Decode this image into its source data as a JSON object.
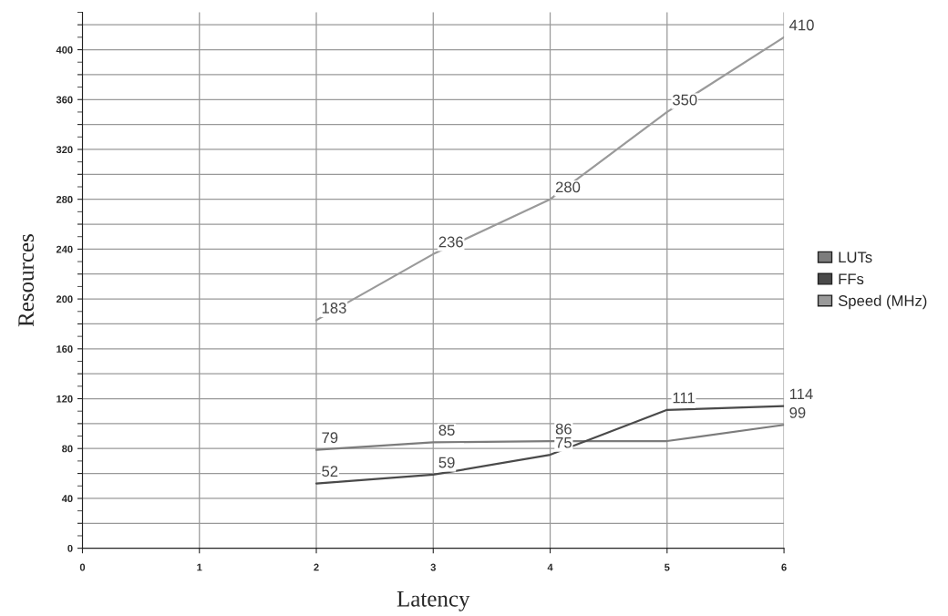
{
  "chart_data": {
    "type": "line",
    "xlabel": "Latency",
    "ylabel": "Resources",
    "x": [
      2,
      3,
      4,
      5,
      6
    ],
    "series": [
      {
        "name": "LUTs",
        "color": "#7c7c7c",
        "values": [
          79,
          85,
          86,
          86,
          99
        ],
        "value_labels": [
          "79",
          "85",
          "86",
          null,
          "99"
        ]
      },
      {
        "name": "FFs",
        "color": "#4a4a4a",
        "values": [
          52,
          59,
          75,
          111,
          114
        ],
        "value_labels": [
          "52",
          "59",
          "75",
          "111",
          "114"
        ]
      },
      {
        "name": "Speed (MHz)",
        "color": "#9a9a9a",
        "values": [
          183,
          236,
          280,
          350,
          410
        ],
        "value_labels": [
          "183",
          "236",
          "280",
          "350",
          "410"
        ]
      }
    ],
    "xlim": [
      0,
      6
    ],
    "xticks": [
      0,
      1,
      2,
      3,
      4,
      5,
      6
    ],
    "ylim": [
      0,
      430
    ],
    "yticks": [
      0,
      {
        "value": 20,
        "label": null
      },
      40,
      {
        "value": 60,
        "label": null
      },
      80,
      {
        "value": 100,
        "label": null
      },
      120,
      {
        "value": 140,
        "label": null
      },
      160,
      {
        "value": 180,
        "label": null
      },
      200,
      {
        "value": 220,
        "label": null
      },
      240,
      {
        "value": 260,
        "label": null
      },
      280,
      {
        "value": 300,
        "label": null
      },
      320,
      {
        "value": 340,
        "label": null
      },
      360,
      {
        "value": 380,
        "label": null
      },
      400,
      {
        "value": 420,
        "label": null
      }
    ],
    "grid": true,
    "legend": "right",
    "marker": "none",
    "line_style": "solid"
  }
}
